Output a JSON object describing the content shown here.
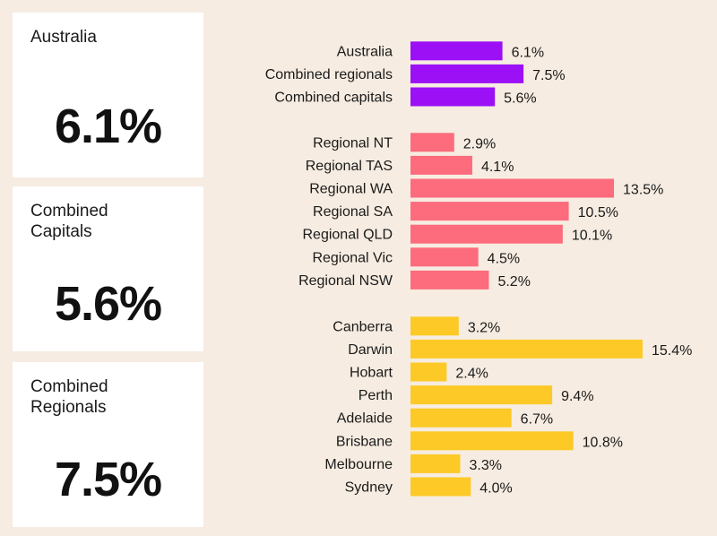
{
  "cards": [
    {
      "label": "Australia",
      "value": "6.1%"
    },
    {
      "label": "Combined\nCapitals",
      "value": "5.6%"
    },
    {
      "label": "Combined\nRegionals",
      "value": "7.5%"
    }
  ],
  "colors": {
    "purple": "#9b10f5",
    "pink": "#fc6c7c",
    "yellow": "#fdc926"
  },
  "chart_data": {
    "type": "bar",
    "orientation": "horizontal",
    "title": "",
    "xlabel": "",
    "ylabel": "",
    "xlim": [
      0,
      15.4
    ],
    "grid": false,
    "groups": [
      {
        "name": "national",
        "color": "#9b10f5",
        "categories": [
          "Australia",
          "Combined regionals",
          "Combined capitals"
        ],
        "values": [
          6.1,
          7.5,
          5.6
        ],
        "labels": [
          "6.1%",
          "7.5%",
          "5.6%"
        ]
      },
      {
        "name": "regional",
        "color": "#fc6c7c",
        "categories": [
          "Regional NT",
          "Regional TAS",
          "Regional WA",
          "Regional SA",
          "Regional QLD",
          "Regional Vic",
          "Regional NSW"
        ],
        "values": [
          2.9,
          4.1,
          13.5,
          10.5,
          10.1,
          4.5,
          5.2
        ],
        "labels": [
          "2.9%",
          "4.1%",
          "13.5%",
          "10.5%",
          "10.1%",
          "4.5%",
          "5.2%"
        ]
      },
      {
        "name": "capitals",
        "color": "#fdc926",
        "categories": [
          "Canberra",
          "Darwin",
          "Hobart",
          "Perth",
          "Adelaide",
          "Brisbane",
          "Melbourne",
          "Sydney"
        ],
        "values": [
          3.2,
          15.4,
          2.4,
          9.4,
          6.7,
          10.8,
          3.3,
          4.0
        ],
        "labels": [
          "3.2%",
          "15.4%",
          "2.4%",
          "9.4%",
          "6.7%",
          "10.8%",
          "3.3%",
          "4.0%"
        ]
      }
    ]
  }
}
